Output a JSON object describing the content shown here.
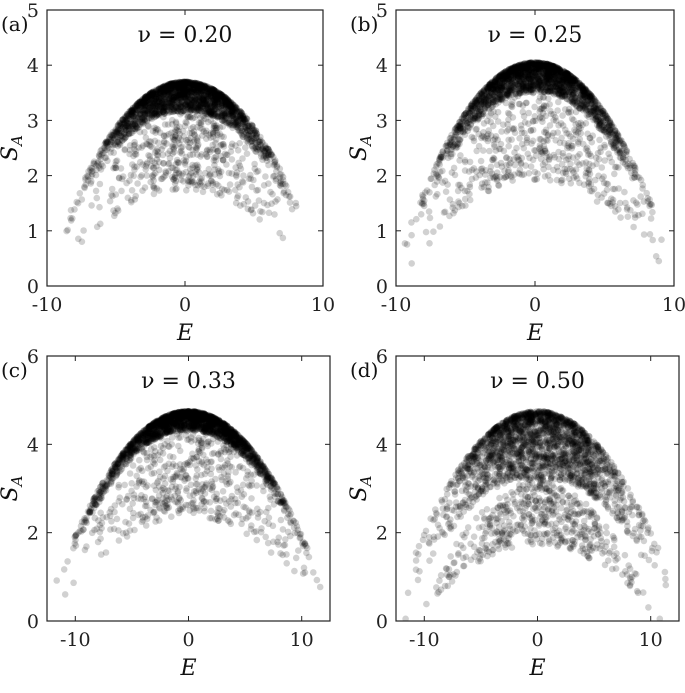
{
  "chart_data": [
    {
      "type": "scatter",
      "panel": "(a)",
      "annotation": "ν = 0.20",
      "xlabel": "E",
      "ylabel": "S_A",
      "xlim": [
        -10,
        10
      ],
      "ylim": [
        0,
        5
      ],
      "xticks": [
        -10,
        0,
        10
      ],
      "yticks": [
        0,
        1,
        2,
        3,
        4,
        5
      ],
      "envelope": {
        "center": 0,
        "peak": 3.7,
        "half_width": 9.5,
        "floor_at_edge": 0.7,
        "band_depth": 0.55
      },
      "color": "#000000",
      "opacity": 0.18
    },
    {
      "type": "scatter",
      "panel": "(b)",
      "annotation": "ν = 0.25",
      "xlabel": "E",
      "ylabel": "S_A",
      "xlim": [
        -10,
        10
      ],
      "ylim": [
        0,
        5
      ],
      "xticks": [
        -10,
        0,
        10
      ],
      "yticks": [
        0,
        1,
        2,
        3,
        4,
        5
      ],
      "envelope": {
        "center": 0,
        "peak": 4.05,
        "half_width": 10.2,
        "floor_at_edge": 0.25,
        "band_depth": 0.55
      },
      "color": "#000000",
      "opacity": 0.18
    },
    {
      "type": "scatter",
      "panel": "(c)",
      "annotation": "ν = 0.33",
      "xlabel": "E",
      "ylabel": "S_A",
      "xlim": [
        -12.5,
        12.5
      ],
      "ylim": [
        0,
        6
      ],
      "xticks": [
        -10,
        0,
        10
      ],
      "yticks": [
        0,
        2,
        4,
        6
      ],
      "envelope": {
        "center": 0,
        "peak": 4.75,
        "half_width": 12.5,
        "floor_at_edge": 0.35,
        "band_depth": 0.45
      },
      "color": "#000000",
      "opacity": 0.18
    },
    {
      "type": "scatter",
      "panel": "(d)",
      "annotation": "ν = 0.50",
      "xlabel": "E",
      "ylabel": "S_A",
      "xlim": [
        -12.5,
        12.5
      ],
      "ylim": [
        0,
        6
      ],
      "xticks": [
        -10,
        0,
        10
      ],
      "yticks": [
        0,
        2,
        4,
        6
      ],
      "envelope": {
        "center": 0,
        "peak": 4.75,
        "half_width": 12.5,
        "floor_at_edge": 0.5,
        "band_depth": 1.6
      },
      "color": "#000000",
      "opacity": 0.18
    }
  ]
}
